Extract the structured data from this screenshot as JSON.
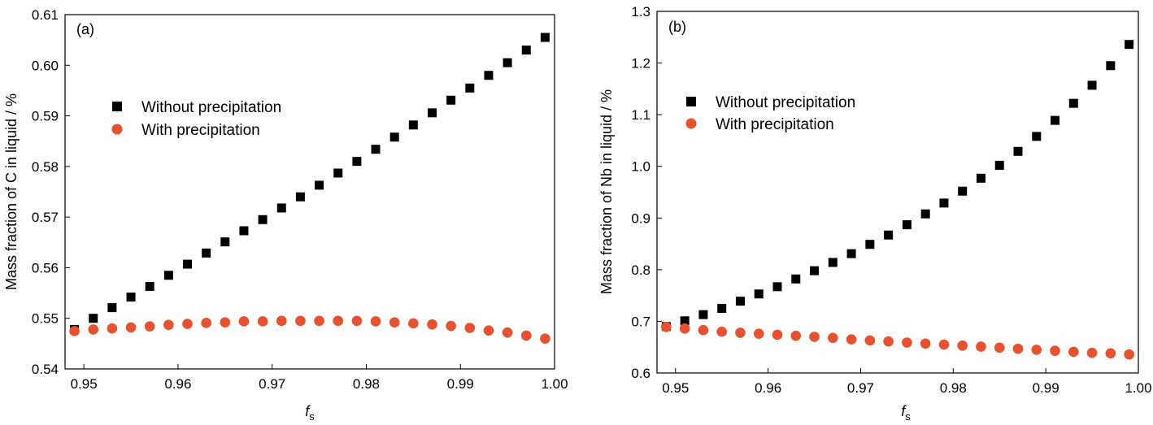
{
  "colors": {
    "without": "#000000",
    "with": "#e8502e"
  },
  "chart_data": [
    {
      "type": "scatter",
      "panel_label": "(a)",
      "xlabel": "f",
      "xlabel_sub": "s",
      "ylabel": "Mass fraction of C in liquid / %",
      "xlim": [
        0.948,
        1.0
      ],
      "ylim": [
        0.54,
        0.61
      ],
      "xticks": [
        0.95,
        0.96,
        0.97,
        0.98,
        0.99,
        1.0
      ],
      "xtick_labels": [
        "0.95",
        "0.96",
        "0.97",
        "0.98",
        "0.99",
        "1.00"
      ],
      "yticks": [
        0.54,
        0.55,
        0.56,
        0.57,
        0.58,
        0.59,
        0.6,
        0.61
      ],
      "ytick_labels": [
        "0.54",
        "0.55",
        "0.56",
        "0.57",
        "0.58",
        "0.59",
        "0.60",
        "0.61"
      ],
      "x": [
        0.949,
        0.951,
        0.953,
        0.955,
        0.957,
        0.959,
        0.961,
        0.963,
        0.965,
        0.967,
        0.969,
        0.971,
        0.973,
        0.975,
        0.977,
        0.979,
        0.981,
        0.983,
        0.985,
        0.987,
        0.989,
        0.991,
        0.993,
        0.995,
        0.997,
        0.999
      ],
      "series": [
        {
          "name": "Without precipitation",
          "marker": "square",
          "values": [
            0.5478,
            0.55,
            0.5521,
            0.5542,
            0.5563,
            0.5585,
            0.5607,
            0.5629,
            0.5651,
            0.5673,
            0.5695,
            0.5718,
            0.574,
            0.5763,
            0.5787,
            0.581,
            0.5834,
            0.5858,
            0.5882,
            0.5906,
            0.5931,
            0.5955,
            0.598,
            0.6005,
            0.603,
            0.6055
          ]
        },
        {
          "name": "With precipitation",
          "marker": "circle",
          "values": [
            0.5475,
            0.5478,
            0.548,
            0.5482,
            0.5484,
            0.5487,
            0.5489,
            0.5491,
            0.5492,
            0.5494,
            0.5494,
            0.5495,
            0.5495,
            0.5495,
            0.5495,
            0.5495,
            0.5494,
            0.5492,
            0.549,
            0.5488,
            0.5485,
            0.5481,
            0.5476,
            0.5472,
            0.5466,
            0.546
          ]
        }
      ],
      "legend_position": "upper-left"
    },
    {
      "type": "scatter",
      "panel_label": "(b)",
      "xlabel": "f",
      "xlabel_sub": "s",
      "ylabel": "Mass fraction of Nb in liquid / %",
      "xlim": [
        0.948,
        1.0
      ],
      "ylim": [
        0.6,
        1.3
      ],
      "xticks": [
        0.95,
        0.96,
        0.97,
        0.98,
        0.99,
        1.0
      ],
      "xtick_labels": [
        "0.95",
        "0.96",
        "0.97",
        "0.98",
        "0.99",
        "1.00"
      ],
      "yticks": [
        0.6,
        0.7,
        0.8,
        0.9,
        1.0,
        1.1,
        1.2,
        1.3
      ],
      "ytick_labels": [
        "0.6",
        "0.7",
        "0.8",
        "0.9",
        "1.0",
        "1.1",
        "1.2",
        "1.3"
      ],
      "x": [
        0.949,
        0.951,
        0.953,
        0.955,
        0.957,
        0.959,
        0.961,
        0.963,
        0.965,
        0.967,
        0.969,
        0.971,
        0.973,
        0.975,
        0.977,
        0.979,
        0.981,
        0.983,
        0.985,
        0.987,
        0.989,
        0.991,
        0.993,
        0.995,
        0.997,
        0.999
      ],
      "series": [
        {
          "name": "Without precipitation",
          "marker": "square",
          "values": [
            0.69,
            0.701,
            0.713,
            0.725,
            0.739,
            0.753,
            0.767,
            0.782,
            0.798,
            0.814,
            0.831,
            0.849,
            0.867,
            0.887,
            0.908,
            0.929,
            0.952,
            0.977,
            1.002,
            1.029,
            1.058,
            1.089,
            1.122,
            1.157,
            1.195,
            1.236
          ]
        },
        {
          "name": "With precipitation",
          "marker": "circle",
          "values": [
            0.689,
            0.686,
            0.683,
            0.68,
            0.678,
            0.676,
            0.674,
            0.672,
            0.67,
            0.668,
            0.665,
            0.663,
            0.661,
            0.659,
            0.657,
            0.655,
            0.653,
            0.651,
            0.649,
            0.647,
            0.645,
            0.643,
            0.641,
            0.639,
            0.638,
            0.636
          ]
        }
      ],
      "legend_position": "upper-left"
    }
  ]
}
